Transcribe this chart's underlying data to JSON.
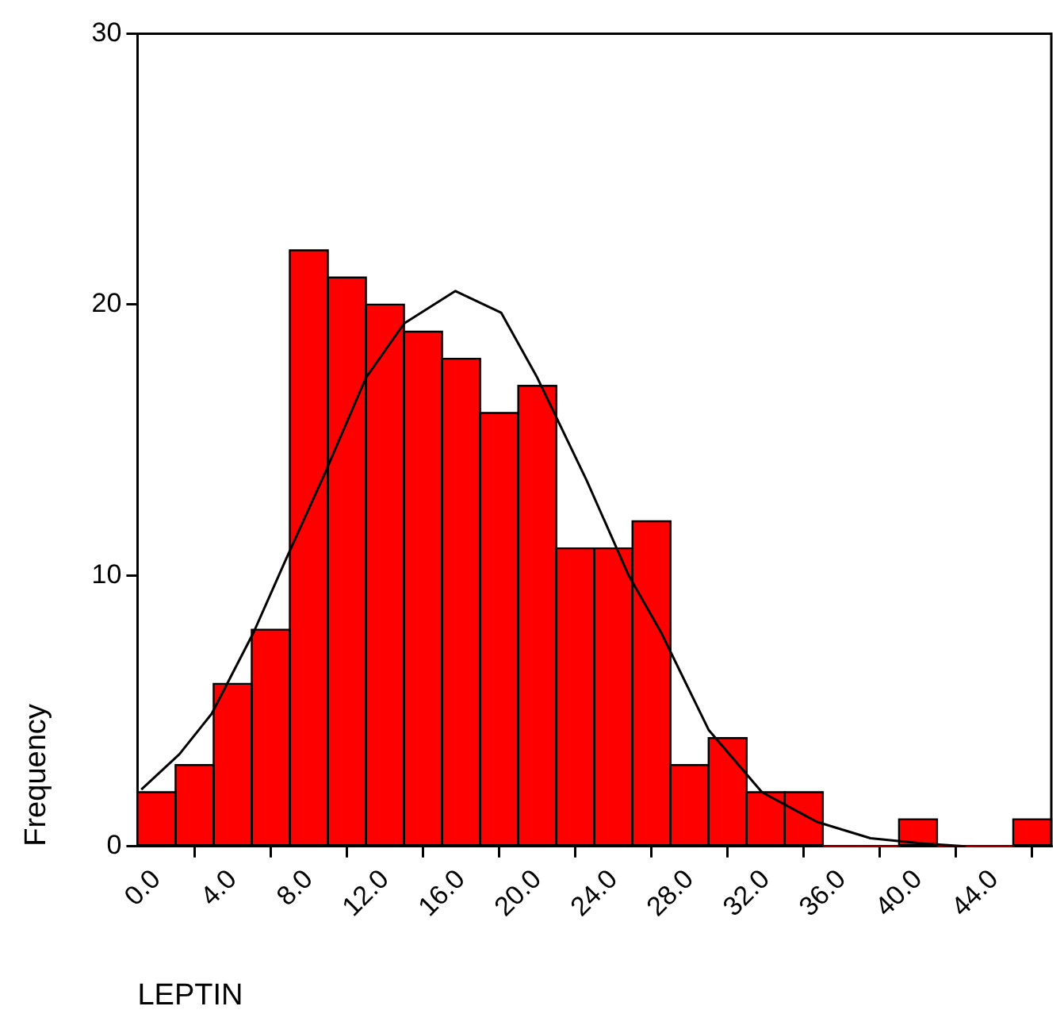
{
  "chart_data": {
    "type": "histogram",
    "xlabel": "LEPTIN",
    "ylabel": "Frequency",
    "color": "#ff0000",
    "grid": false,
    "marker": "none",
    "bins": [
      -1,
      1,
      3,
      5,
      7,
      9,
      11,
      13,
      15,
      17,
      19,
      21,
      23,
      25,
      27,
      29,
      31,
      33,
      35,
      37,
      39,
      41,
      43,
      45,
      47
    ],
    "values": [
      2,
      3,
      6,
      8,
      22,
      21,
      20,
      19,
      18,
      16,
      17,
      11,
      11,
      12,
      3,
      4,
      2,
      2,
      0,
      0,
      1,
      0,
      0,
      1
    ],
    "xlim": [
      -1,
      47
    ],
    "xticks": [
      {
        "value": 0,
        "label": "0.0"
      },
      {
        "value": 4,
        "label": "4.0"
      },
      {
        "value": 8,
        "label": "8.0"
      },
      {
        "value": 12,
        "label": "12.0"
      },
      {
        "value": 16,
        "label": "16.0"
      },
      {
        "value": 20,
        "label": "20.0"
      },
      {
        "value": 24,
        "label": "24.0"
      },
      {
        "value": 28,
        "label": "28.0"
      },
      {
        "value": 32,
        "label": "32.0"
      },
      {
        "value": 36,
        "label": "36.0"
      },
      {
        "value": 40,
        "label": "40.0"
      },
      {
        "value": 44,
        "label": "44.0"
      }
    ],
    "ylim": [
      0,
      30
    ],
    "yticks": [
      0,
      10,
      20,
      30
    ],
    "series": [
      {
        "type": "line",
        "color": "#000000",
        "x": [
          -0.8,
          1.2,
          2.9,
          5.1,
          6.8,
          8.8,
          11.0,
          13.0,
          15.7,
          18.1,
          20.0,
          22.6,
          24.8,
          26.5,
          29.0,
          31.8,
          34.7,
          37.5,
          40.3,
          42.5
        ],
        "values": [
          2.1,
          3.4,
          4.9,
          7.9,
          10.6,
          13.7,
          17.3,
          19.3,
          20.5,
          19.7,
          17.3,
          13.5,
          10.0,
          7.9,
          4.3,
          2.0,
          0.9,
          0.3,
          0.1,
          0
        ]
      }
    ]
  }
}
